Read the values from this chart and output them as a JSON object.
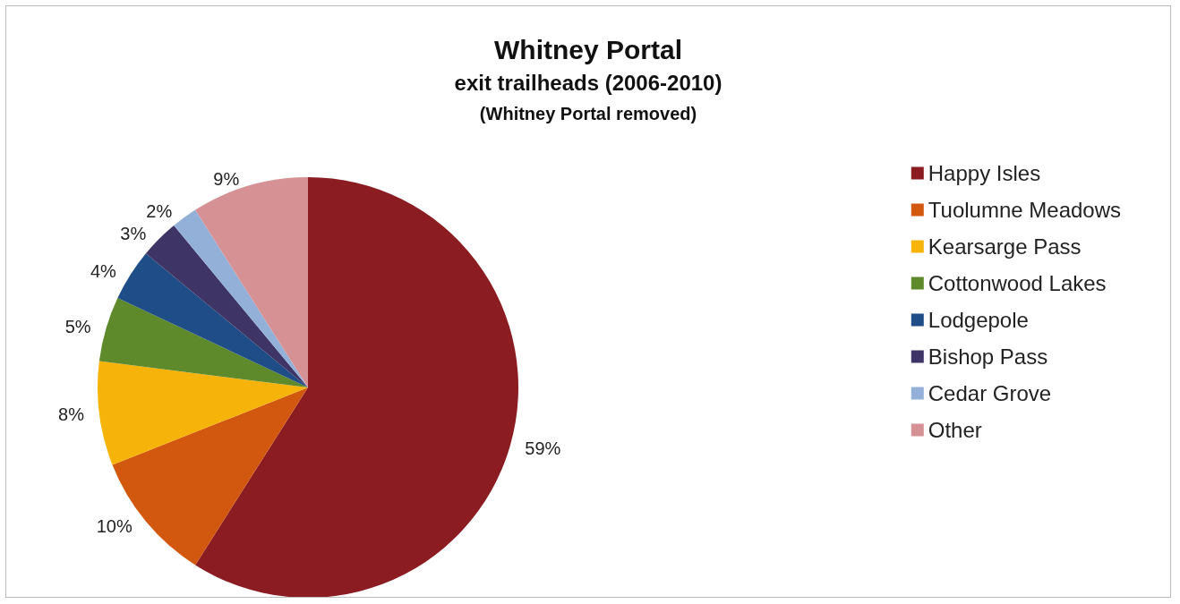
{
  "chart_data": {
    "type": "pie",
    "title": "Whitney Portal",
    "subtitle": "exit trailheads (2006-2010)",
    "annotations": [
      "(Whitney Portal removed)"
    ],
    "categories": [
      "Happy Isles",
      "Tuolumne Meadows",
      "Kearsarge Pass",
      "Cottonwood Lakes",
      "Lodgepole",
      "Bishop Pass",
      "Cedar Grove",
      "Other"
    ],
    "values": [
      59,
      10,
      8,
      5,
      4,
      3,
      2,
      9
    ],
    "value_labels": [
      "59%",
      "10%",
      "8%",
      "5%",
      "4%",
      "3%",
      "2%",
      "9%"
    ],
    "colors": [
      "#8b1c22",
      "#d3580f",
      "#f6b30a",
      "#5e8a2c",
      "#1f4d88",
      "#3e3466",
      "#93b1d8",
      "#d69195"
    ],
    "legend": "right"
  }
}
